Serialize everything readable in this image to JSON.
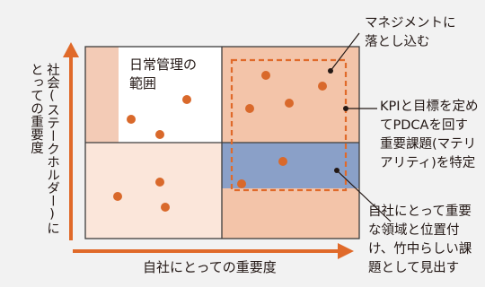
{
  "quadrant_labels": {
    "top_left": [
      "日常管理の",
      "範囲"
    ]
  },
  "axes": {
    "x_label": "自社にとっての重要度",
    "y_label_line1": "社会(ステークホルダー)に",
    "y_label_line2": "とっての重要度"
  },
  "annotations": {
    "top": [
      "マネジメントに",
      "落とし込む"
    ],
    "middle": [
      "KPIと目標を定め",
      "てPDCAを回す",
      "重要課題(マテリ",
      "アリティ)を特定"
    ],
    "bottom": [
      "自社にとって重要",
      "な領域と位置付",
      "け、竹中らしい課",
      "題として見出す"
    ]
  },
  "colors": {
    "dot": "#d9692b",
    "arrow": "#e06a2a",
    "quad_top_left_outer": "#f3cbb6",
    "quad_top_left_inner": "#ffffff",
    "quad_top_right": "#f3c4a9",
    "quad_bottom_left": "#fbe6da",
    "quad_bottom_right_band": "#8aa0c8",
    "grid_line": "#3c3c3c",
    "dashed_frame": "#e06a2a"
  }
}
